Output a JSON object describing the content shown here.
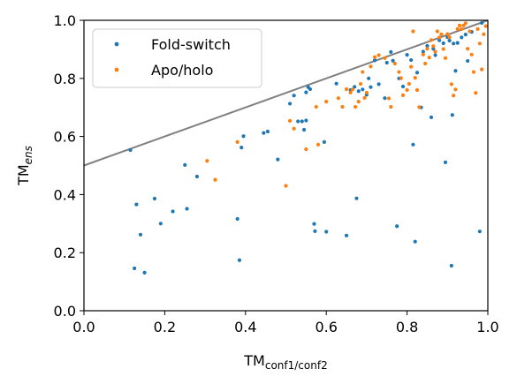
{
  "chart_data": {
    "type": "scatter",
    "xlabel": {
      "main": "TM",
      "sub": "conf1/conf2"
    },
    "ylabel": {
      "main": "TM",
      "sub": "ens"
    },
    "xlim": [
      0.0,
      1.0
    ],
    "ylim": [
      0.0,
      1.0
    ],
    "xticks": [
      "0.0",
      "0.2",
      "0.4",
      "0.6",
      "0.8",
      "1.0"
    ],
    "yticks": [
      "0.0",
      "0.2",
      "0.4",
      "0.6",
      "0.8",
      "1.0"
    ],
    "grid": false,
    "legend_position": "top-left",
    "reference_line": {
      "points": [
        [
          0.0,
          0.5
        ],
        [
          1.0,
          1.0
        ]
      ],
      "color": "#808080"
    },
    "series": [
      {
        "name": "Fold-switch",
        "color": "#1f77b4",
        "points": [
          [
            0.115,
            0.553
          ],
          [
            0.125,
            0.146
          ],
          [
            0.13,
            0.366
          ],
          [
            0.14,
            0.262
          ],
          [
            0.15,
            0.131
          ],
          [
            0.175,
            0.386
          ],
          [
            0.19,
            0.3
          ],
          [
            0.22,
            0.342
          ],
          [
            0.25,
            0.502
          ],
          [
            0.255,
            0.351
          ],
          [
            0.28,
            0.462
          ],
          [
            0.38,
            0.316
          ],
          [
            0.385,
            0.174
          ],
          [
            0.39,
            0.562
          ],
          [
            0.395,
            0.601
          ],
          [
            0.445,
            0.612
          ],
          [
            0.455,
            0.617
          ],
          [
            0.48,
            0.521
          ],
          [
            0.51,
            0.713
          ],
          [
            0.52,
            0.741
          ],
          [
            0.53,
            0.652
          ],
          [
            0.54,
            0.652
          ],
          [
            0.545,
            0.623
          ],
          [
            0.55,
            0.752
          ],
          [
            0.55,
            0.655
          ],
          [
            0.555,
            0.77
          ],
          [
            0.56,
            0.763
          ],
          [
            0.57,
            0.299
          ],
          [
            0.572,
            0.274
          ],
          [
            0.595,
            0.581
          ],
          [
            0.6,
            0.272
          ],
          [
            0.625,
            0.782
          ],
          [
            0.65,
            0.259
          ],
          [
            0.66,
            0.76
          ],
          [
            0.67,
            0.771
          ],
          [
            0.675,
            0.387
          ],
          [
            0.68,
            0.756
          ],
          [
            0.69,
            0.762
          ],
          [
            0.7,
            0.744
          ],
          [
            0.705,
            0.8
          ],
          [
            0.71,
            0.77
          ],
          [
            0.72,
            0.862
          ],
          [
            0.73,
            0.78
          ],
          [
            0.745,
            0.732
          ],
          [
            0.75,
            0.854
          ],
          [
            0.76,
            0.891
          ],
          [
            0.765,
            0.861
          ],
          [
            0.775,
            0.291
          ],
          [
            0.78,
            0.8
          ],
          [
            0.79,
            0.772
          ],
          [
            0.8,
            0.881
          ],
          [
            0.81,
            0.863
          ],
          [
            0.815,
            0.572
          ],
          [
            0.82,
            0.238
          ],
          [
            0.825,
            0.82
          ],
          [
            0.835,
            0.7
          ],
          [
            0.84,
            0.892
          ],
          [
            0.85,
            0.912
          ],
          [
            0.86,
            0.666
          ],
          [
            0.865,
            0.902
          ],
          [
            0.87,
            0.88
          ],
          [
            0.88,
            0.931
          ],
          [
            0.89,
            0.921
          ],
          [
            0.895,
            0.511
          ],
          [
            0.9,
            0.942
          ],
          [
            0.905,
            0.93
          ],
          [
            0.91,
            0.155
          ],
          [
            0.912,
            0.674
          ],
          [
            0.915,
            0.92
          ],
          [
            0.92,
            0.826
          ],
          [
            0.925,
            0.922
          ],
          [
            0.935,
            0.941
          ],
          [
            0.945,
            0.951
          ],
          [
            0.95,
            0.86
          ],
          [
            0.96,
            0.96
          ],
          [
            0.98,
            0.273
          ],
          [
            0.985,
            0.991
          ]
        ]
      },
      {
        "name": "Apo/holo",
        "color": "#ff7f0e",
        "points": [
          [
            0.305,
            0.516
          ],
          [
            0.325,
            0.451
          ],
          [
            0.38,
            0.581
          ],
          [
            0.5,
            0.43
          ],
          [
            0.51,
            0.654
          ],
          [
            0.52,
            0.627
          ],
          [
            0.55,
            0.556
          ],
          [
            0.575,
            0.702
          ],
          [
            0.58,
            0.572
          ],
          [
            0.6,
            0.72
          ],
          [
            0.63,
            0.732
          ],
          [
            0.64,
            0.702
          ],
          [
            0.65,
            0.763
          ],
          [
            0.66,
            0.751
          ],
          [
            0.665,
            0.762
          ],
          [
            0.672,
            0.702
          ],
          [
            0.68,
            0.72
          ],
          [
            0.685,
            0.781
          ],
          [
            0.69,
            0.822
          ],
          [
            0.695,
            0.733
          ],
          [
            0.7,
            0.751
          ],
          [
            0.71,
            0.841
          ],
          [
            0.72,
            0.873
          ],
          [
            0.73,
            0.88
          ],
          [
            0.745,
            0.87
          ],
          [
            0.755,
            0.731
          ],
          [
            0.76,
            0.702
          ],
          [
            0.77,
            0.851
          ],
          [
            0.78,
            0.822
          ],
          [
            0.785,
            0.801
          ],
          [
            0.79,
            0.742
          ],
          [
            0.8,
            0.76
          ],
          [
            0.805,
            0.781
          ],
          [
            0.81,
            0.84
          ],
          [
            0.815,
            0.962
          ],
          [
            0.82,
            0.802
          ],
          [
            0.825,
            0.76
          ],
          [
            0.83,
            0.701
          ],
          [
            0.84,
            0.882
          ],
          [
            0.845,
            0.851
          ],
          [
            0.85,
            0.902
          ],
          [
            0.855,
            0.872
          ],
          [
            0.86,
            0.932
          ],
          [
            0.865,
            0.911
          ],
          [
            0.87,
            0.892
          ],
          [
            0.875,
            0.962
          ],
          [
            0.88,
            0.941
          ],
          [
            0.885,
            0.952
          ],
          [
            0.89,
            0.901
          ],
          [
            0.895,
            0.87
          ],
          [
            0.9,
            0.953
          ],
          [
            0.905,
            0.942
          ],
          [
            0.91,
            0.78
          ],
          [
            0.915,
            0.741
          ],
          [
            0.92,
            0.762
          ],
          [
            0.925,
            0.97
          ],
          [
            0.93,
            0.982
          ],
          [
            0.935,
            0.97
          ],
          [
            0.94,
            0.982
          ],
          [
            0.945,
            0.99
          ],
          [
            0.95,
            0.902
          ],
          [
            0.955,
            0.962
          ],
          [
            0.96,
            0.882
          ],
          [
            0.965,
            0.822
          ],
          [
            0.97,
            0.75
          ],
          [
            0.975,
            0.97
          ],
          [
            0.98,
            0.92
          ],
          [
            0.985,
            0.831
          ],
          [
            0.99,
            0.952
          ],
          [
            0.995,
            0.98
          ]
        ]
      }
    ]
  }
}
